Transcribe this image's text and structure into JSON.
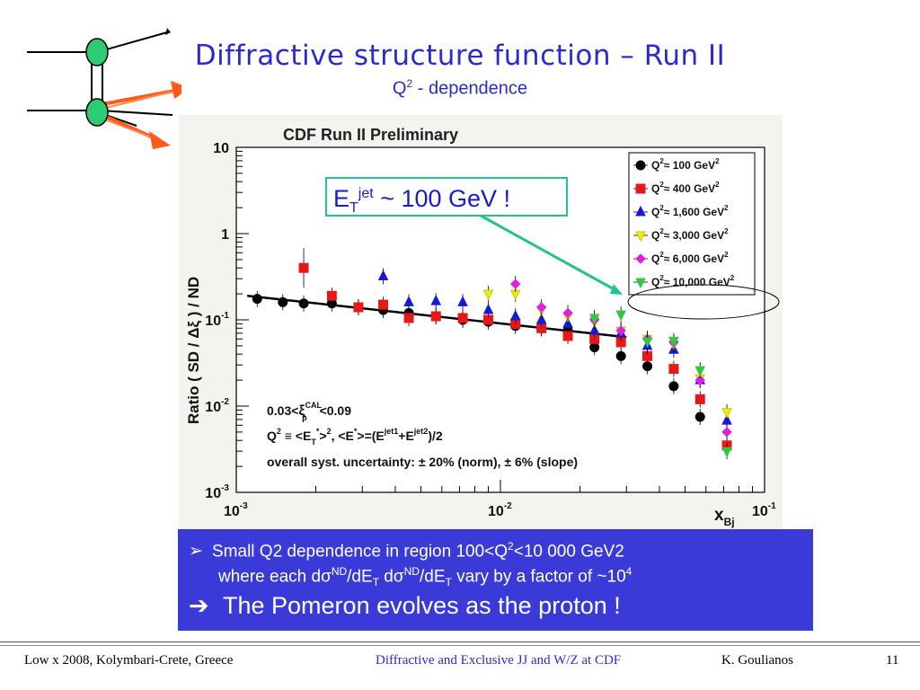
{
  "slide": {
    "title": "Diffractive structure function – Run II",
    "subtitle_q": "Q",
    "subtitle_sup": "2",
    "subtitle_rest": " - dependence"
  },
  "chart_data": {
    "type": "scatter",
    "title": "CDF Run II Preliminary",
    "xlabel_main": "x",
    "xlabel_sub": "Bj",
    "ylabel": "Ratio  ( SD /  Δξ ) / ND",
    "x_scale": "log",
    "y_scale": "log",
    "xlim": [
      0.001,
      0.1
    ],
    "ylim": [
      0.001,
      10
    ],
    "x_ticks": [
      {
        "value": 0.001,
        "base": "10",
        "exp": "-3"
      },
      {
        "value": 0.01,
        "base": "10",
        "exp": "-2"
      },
      {
        "value": 0.1,
        "base": "10",
        "exp": "-1"
      }
    ],
    "y_ticks": [
      {
        "value": 10,
        "label": "10"
      },
      {
        "value": 1,
        "label": "1"
      },
      {
        "value": 0.1,
        "base": "10",
        "exp": "-1"
      },
      {
        "value": 0.01,
        "base": "10",
        "exp": "-2"
      },
      {
        "value": 0.001,
        "base": "10",
        "exp": "-3"
      }
    ],
    "fit_line": {
      "x": [
        0.0011,
        0.03
      ],
      "y": [
        0.19,
        0.063
      ]
    },
    "series": [
      {
        "name": "100 GeV",
        "legend_q": "Q",
        "legend_approx": "≈",
        "legend_value": "100 GeV",
        "legend_exp": "2",
        "color": "#000000",
        "marker": "circle",
        "x": [
          0.0012,
          0.0015,
          0.0018,
          0.0023,
          0.0029,
          0.0036,
          0.0045,
          0.0057,
          0.0072,
          0.009,
          0.0114,
          0.0143,
          0.018,
          0.0227,
          0.0286,
          0.036,
          0.0453,
          0.057
        ],
        "y": [
          0.175,
          0.16,
          0.155,
          0.155,
          0.14,
          0.13,
          0.12,
          0.11,
          0.1,
          0.095,
          0.085,
          0.08,
          0.075,
          0.048,
          0.038,
          0.029,
          0.017,
          0.0075
        ]
      },
      {
        "name": "400 GeV",
        "legend_q": "Q",
        "legend_approx": "≈",
        "legend_value": "400 GeV",
        "legend_exp": "2",
        "color": "#e81818",
        "marker": "square",
        "x": [
          0.0018,
          0.0023,
          0.0029,
          0.0036,
          0.0045,
          0.0057,
          0.0072,
          0.009,
          0.0114,
          0.0143,
          0.018,
          0.0227,
          0.0286,
          0.036,
          0.0453,
          0.057,
          0.072
        ],
        "y": [
          0.4,
          0.19,
          0.14,
          0.15,
          0.105,
          0.11,
          0.105,
          0.1,
          0.09,
          0.08,
          0.065,
          0.06,
          0.055,
          0.038,
          0.027,
          0.012,
          0.0035
        ]
      },
      {
        "name": "1,600 GeV",
        "legend_q": "Q",
        "legend_approx": "≈",
        "legend_value": "1,600 GeV",
        "legend_exp": "2",
        "color": "#1818d8",
        "marker": "triangle-up",
        "x": [
          0.0036,
          0.0045,
          0.0057,
          0.0072,
          0.009,
          0.0114,
          0.0143,
          0.018,
          0.0227,
          0.0286,
          0.036,
          0.0453,
          0.057,
          0.072
        ],
        "y": [
          0.32,
          0.16,
          0.165,
          0.16,
          0.13,
          0.11,
          0.1,
          0.09,
          0.075,
          0.07,
          0.05,
          0.045,
          0.02,
          0.0068
        ]
      },
      {
        "name": "3,000 GeV",
        "legend_q": "Q",
        "legend_approx": "≈",
        "legend_value": "3,000 GeV",
        "legend_exp": "2",
        "color": "#f0f000",
        "marker": "triangle-down",
        "x": [
          0.009,
          0.0114,
          0.0143,
          0.018,
          0.0227,
          0.0286,
          0.036,
          0.0453,
          0.057,
          0.072
        ],
        "y": [
          0.2,
          0.2,
          0.13,
          0.11,
          0.095,
          0.075,
          0.06,
          0.052,
          0.021,
          0.0085
        ]
      },
      {
        "name": "6,000 GeV",
        "legend_q": "Q",
        "legend_approx": "≈",
        "legend_value": "6,000 GeV",
        "legend_exp": "2",
        "color": "#e020e0",
        "marker": "diamond",
        "x": [
          0.0114,
          0.0143,
          0.018,
          0.0227,
          0.0286,
          0.036,
          0.0453,
          0.057,
          0.072
        ],
        "y": [
          0.26,
          0.14,
          0.12,
          0.1,
          0.075,
          0.06,
          0.055,
          0.02,
          0.005
        ]
      },
      {
        "name": "10,000 GeV",
        "legend_q": "Q",
        "legend_approx": "≈",
        "legend_value": "10,000 GeV",
        "legend_exp": "2",
        "color": "#30c840",
        "marker": "triangle-down",
        "x": [
          0.0227,
          0.0286,
          0.036,
          0.0453,
          0.057,
          0.072
        ],
        "y": [
          0.105,
          0.115,
          0.056,
          0.057,
          0.026,
          0.003
        ]
      }
    ],
    "annotations": {
      "xi_lo": "0.03<",
      "xi_sym": "ξ",
      "xi_sup": "CAL",
      "xi_sub": "p",
      "xi_hi": "<0.09",
      "q2_def_a": "Q",
      "q2_def_b": "2",
      "q2_def_c": " ≡ <E",
      "q2_def_d": "T",
      "q2_def_e": "*",
      "q2_def_f": ">",
      "q2_def_g": "2",
      "q2_def_h": ",  <E",
      "q2_def_i": "*",
      "q2_def_j": ">=(E",
      "q2_def_k": "jet1",
      "q2_def_l": "+E",
      "q2_def_m": "jet2",
      "q2_def_n": ")/2",
      "syst": "overall syst. uncertainty: ± 20% (norm), ± 6% (slope)",
      "et_a": "E",
      "et_sub": "T",
      "et_sup": "jet",
      "et_b": " ~ 100 GeV !"
    }
  },
  "bottom_box": {
    "bullet1_symbol": "➢",
    "line1": "Small Q2 dependence in region 100<Q",
    "line1_sup": "2",
    "line1_end": "<10 000 GeV2",
    "line2_a": "where each d",
    "line2_sigma1": "σ",
    "line2_sup1": "ND",
    "line2_b": "/dE",
    "line2_sub1": "T",
    "line2_c": " d",
    "line2_sigma2": "σ",
    "line2_sup2": "ND",
    "line2_d": "/dE",
    "line2_sub2": "T",
    "line2_e": " vary by a factor of ~10",
    "line2_sup3": "4",
    "bullet2_symbol": "➔",
    "line3": "The Pomeron evolves as the proton !"
  },
  "footer": {
    "left": "Low x 2008, Kolymbari-Crete, Greece",
    "center": "Diffractive and Exclusive JJ and W/Z at CDF",
    "author": "K.  Goulianos",
    "page": "11"
  },
  "colors": {
    "title": "#2a2ad0",
    "box": "#3a3ad8",
    "node": "#2ecc71",
    "arrow": "#ff5a1a",
    "callout": "#22c48a"
  }
}
